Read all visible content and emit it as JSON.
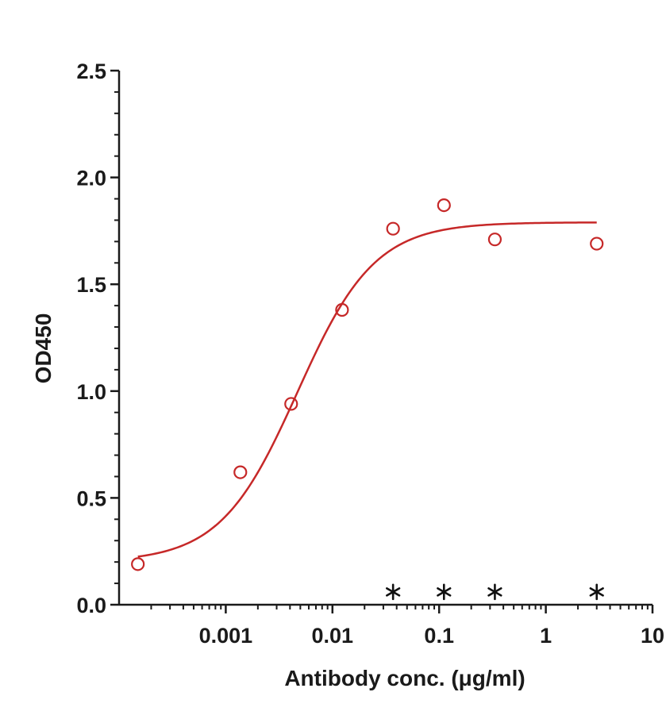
{
  "chart_data": {
    "type": "scatter",
    "title": "",
    "xlabel": "Antibody conc. (μg/ml)",
    "ylabel": "OD450",
    "x_scale": "log",
    "xlim": [
      0.0001,
      10
    ],
    "ylim": [
      0,
      2.5
    ],
    "grid": false,
    "legend": "none",
    "x_ticks": [
      {
        "value": 0.001,
        "label": "0.001"
      },
      {
        "value": 0.01,
        "label": "0.01"
      },
      {
        "value": 0.1,
        "label": "0.1"
      },
      {
        "value": 1,
        "label": "1"
      },
      {
        "value": 10,
        "label": "10"
      }
    ],
    "y_ticks": [
      {
        "value": 0.0,
        "label": "0.0"
      },
      {
        "value": 0.5,
        "label": "0.5"
      },
      {
        "value": 1.0,
        "label": "1.0"
      },
      {
        "value": 1.5,
        "label": "1.5"
      },
      {
        "value": 2.0,
        "label": "2.0"
      },
      {
        "value": 2.5,
        "label": "2.5"
      }
    ],
    "series": [
      {
        "marker": "open-circle",
        "color": "#c62828",
        "points": [
          {
            "x": 0.00015,
            "y": 0.19
          },
          {
            "x": 0.00137,
            "y": 0.62
          },
          {
            "x": 0.0041,
            "y": 0.94
          },
          {
            "x": 0.0123,
            "y": 1.38
          },
          {
            "x": 0.037,
            "y": 1.76
          },
          {
            "x": 0.111,
            "y": 1.87
          },
          {
            "x": 0.333,
            "y": 1.71
          },
          {
            "x": 3.0,
            "y": 1.69
          }
        ],
        "fit": {
          "type": "4PL",
          "color": "#c62828",
          "bottom": 0.2,
          "top": 1.79,
          "ec50": 0.0047,
          "hill": 1.2,
          "x_range": [
            0.00015,
            3.0
          ]
        }
      },
      {
        "marker": "star",
        "color": "#111111",
        "points": [
          {
            "x": 0.037,
            "y": 0.06
          },
          {
            "x": 0.111,
            "y": 0.06
          },
          {
            "x": 0.333,
            "y": 0.06
          },
          {
            "x": 3.0,
            "y": 0.06
          }
        ]
      }
    ]
  }
}
